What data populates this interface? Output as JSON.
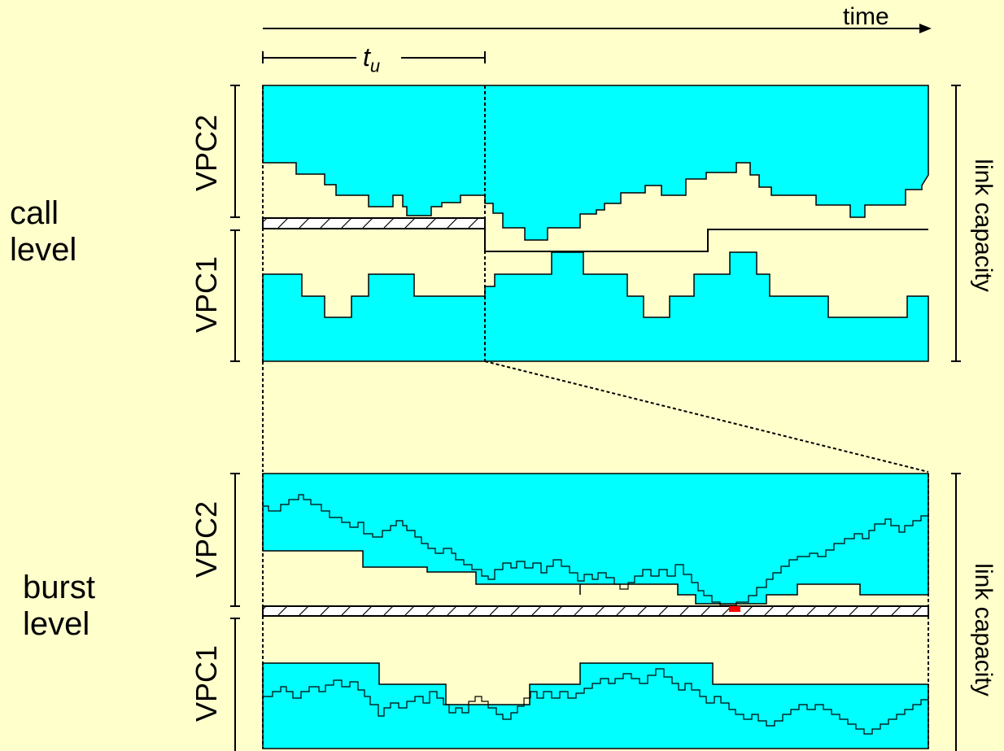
{
  "axis": {
    "time_label": "time",
    "interval_label": "t",
    "interval_subscript": "u"
  },
  "levels": {
    "call": {
      "line1": "call",
      "line2": "level"
    },
    "burst": {
      "line1": "burst",
      "line2": "level"
    }
  },
  "channels": {
    "vpc2": "VPC2",
    "vpc1": "VPC1"
  },
  "capacity_label": "link capacity",
  "colors": {
    "background": "#FFFFCC",
    "fill": "#00FFFF",
    "loss": "#FF0000",
    "line": "#000000"
  }
}
